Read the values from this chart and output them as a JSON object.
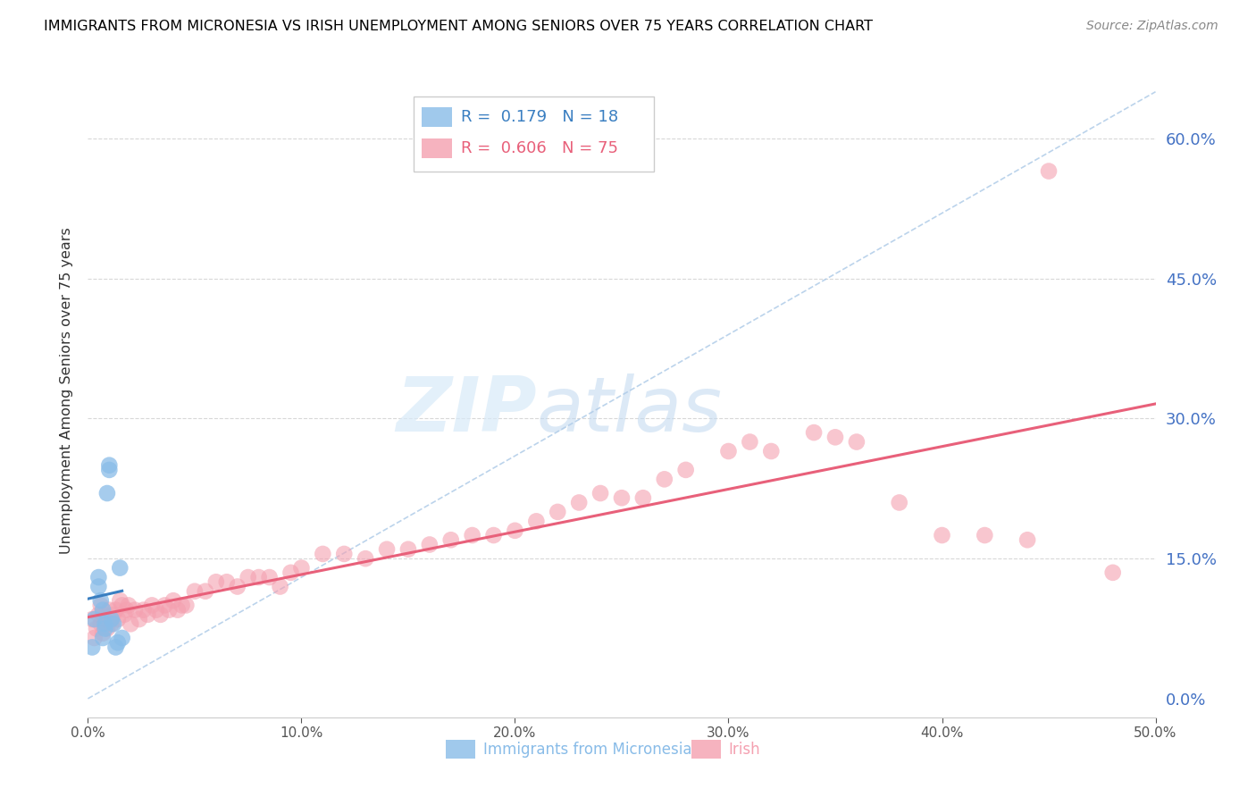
{
  "title": "IMMIGRANTS FROM MICRONESIA VS IRISH UNEMPLOYMENT AMONG SENIORS OVER 75 YEARS CORRELATION CHART",
  "source": "Source: ZipAtlas.com",
  "ylabel": "Unemployment Among Seniors over 75 years",
  "xlabel_micronesia": "Immigrants from Micronesia",
  "xlabel_irish": "Irish",
  "xlim": [
    0.0,
    0.5
  ],
  "ylim": [
    -0.02,
    0.68
  ],
  "yticks": [
    0.0,
    0.15,
    0.3,
    0.45,
    0.6
  ],
  "xticks": [
    0.0,
    0.1,
    0.2,
    0.3,
    0.4,
    0.5
  ],
  "micronesia_R": 0.179,
  "micronesia_N": 18,
  "irish_R": 0.606,
  "irish_N": 75,
  "micronesia_color": "#89bce8",
  "irish_color": "#f4a0b0",
  "micronesia_line_color": "#3a7fc1",
  "irish_line_color": "#e8607a",
  "ref_line_color": "#b0cce8",
  "micronesia_x": [
    0.002,
    0.003,
    0.005,
    0.005,
    0.006,
    0.007,
    0.007,
    0.008,
    0.008,
    0.009,
    0.01,
    0.01,
    0.011,
    0.012,
    0.013,
    0.014,
    0.015,
    0.016
  ],
  "micronesia_y": [
    0.055,
    0.085,
    0.12,
    0.13,
    0.105,
    0.095,
    0.065,
    0.08,
    0.075,
    0.22,
    0.245,
    0.25,
    0.085,
    0.08,
    0.055,
    0.06,
    0.14,
    0.065
  ],
  "irish_x": [
    0.002,
    0.003,
    0.004,
    0.005,
    0.006,
    0.006,
    0.007,
    0.007,
    0.008,
    0.009,
    0.01,
    0.011,
    0.012,
    0.013,
    0.014,
    0.015,
    0.016,
    0.017,
    0.018,
    0.019,
    0.02,
    0.022,
    0.024,
    0.026,
    0.028,
    0.03,
    0.032,
    0.034,
    0.036,
    0.038,
    0.04,
    0.042,
    0.044,
    0.046,
    0.05,
    0.055,
    0.06,
    0.065,
    0.07,
    0.075,
    0.08,
    0.085,
    0.09,
    0.095,
    0.1,
    0.11,
    0.12,
    0.13,
    0.14,
    0.15,
    0.16,
    0.17,
    0.18,
    0.19,
    0.2,
    0.21,
    0.22,
    0.23,
    0.24,
    0.25,
    0.26,
    0.27,
    0.28,
    0.3,
    0.31,
    0.32,
    0.34,
    0.35,
    0.36,
    0.38,
    0.4,
    0.42,
    0.44,
    0.45,
    0.48
  ],
  "irish_y": [
    0.085,
    0.065,
    0.075,
    0.09,
    0.08,
    0.1,
    0.07,
    0.09,
    0.085,
    0.075,
    0.095,
    0.08,
    0.09,
    0.095,
    0.085,
    0.105,
    0.1,
    0.09,
    0.095,
    0.1,
    0.08,
    0.095,
    0.085,
    0.095,
    0.09,
    0.1,
    0.095,
    0.09,
    0.1,
    0.095,
    0.105,
    0.095,
    0.1,
    0.1,
    0.115,
    0.115,
    0.125,
    0.125,
    0.12,
    0.13,
    0.13,
    0.13,
    0.12,
    0.135,
    0.14,
    0.155,
    0.155,
    0.15,
    0.16,
    0.16,
    0.165,
    0.17,
    0.175,
    0.175,
    0.18,
    0.19,
    0.2,
    0.21,
    0.22,
    0.215,
    0.215,
    0.235,
    0.245,
    0.265,
    0.275,
    0.265,
    0.285,
    0.28,
    0.275,
    0.21,
    0.175,
    0.175,
    0.17,
    0.565,
    0.135
  ],
  "mic_line_x0": 0.0,
  "mic_line_x1": 0.016,
  "iri_line_x0": 0.0,
  "iri_line_x1": 0.5,
  "ref_line_x0": 0.0,
  "ref_line_x1": 0.5,
  "ref_line_y0": 0.0,
  "ref_line_y1": 0.65
}
